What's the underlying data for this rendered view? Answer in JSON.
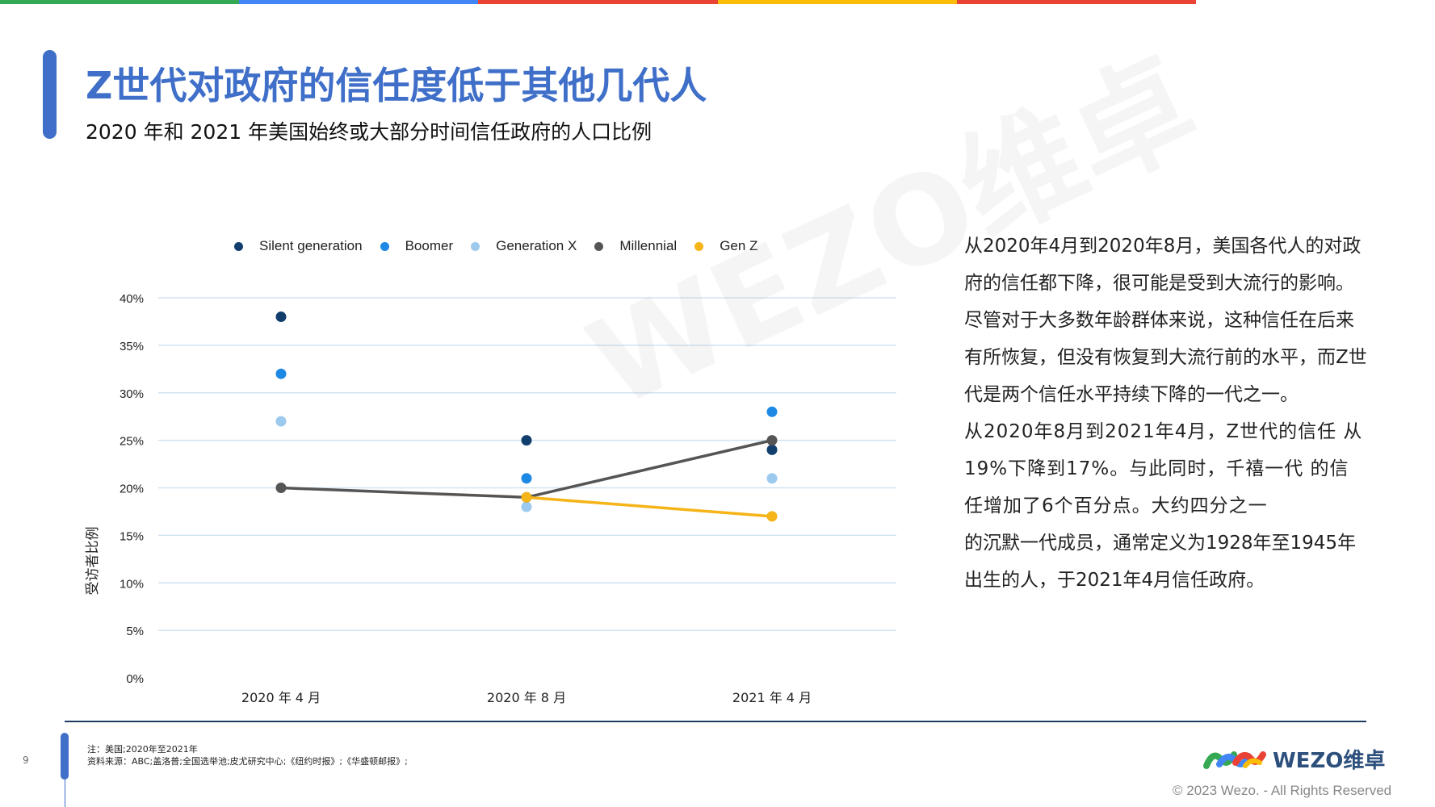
{
  "header": {
    "title": "Z世代对政府的信任度低于其他几代人",
    "subtitle": "2020 年和 2021 年美国始终或大部分时间信任政府的人口比例"
  },
  "colors": {
    "top_bar": [
      "#34a853",
      "#4285f4",
      "#ea4335",
      "#fbbc05",
      "#ea4335",
      "#ffffff"
    ],
    "accent": "#3f6fc8",
    "silent_generation": "#123e6e",
    "boomer": "#1e88e5",
    "generation_x": "#9cc9ee",
    "millennial": "#555555",
    "gen_z": "#f5b417"
  },
  "chart_data": {
    "type": "scatter",
    "title": "",
    "ylabel": "受访者比例",
    "xlabel": "",
    "categories": [
      "2020 年 4 月",
      "2020 年 8 月",
      "2021 年 4 月"
    ],
    "yticks": [
      "0%",
      "5%",
      "10%",
      "15%",
      "20%",
      "25%",
      "30%",
      "35%",
      "40%"
    ],
    "ylim": [
      0,
      40
    ],
    "grid": true,
    "legend_position": "top",
    "series": [
      {
        "name": "Silent generation",
        "values": [
          38,
          25,
          24
        ],
        "style": "markers"
      },
      {
        "name": "Boomer",
        "values": [
          32,
          21,
          28
        ],
        "style": "markers"
      },
      {
        "name": "Generation X",
        "values": [
          27,
          18,
          21
        ],
        "style": "markers"
      },
      {
        "name": "Millennial",
        "values": [
          20,
          19,
          25
        ],
        "style": "line+markers"
      },
      {
        "name": "Gen Z",
        "values": [
          null,
          19,
          17
        ],
        "style": "line+markers"
      }
    ]
  },
  "watermark": "WEZO维卓",
  "body": {
    "paragraph1": "从2020年4月到2020年8月，美国各代人的对政府的信任都下降，很可能是受到大流行的影响。尽管对于大多数年龄群体来说，这种信任在后来有所恢复，但没有恢复到大流行前的水平，而Z世代是两个信任水平持续下降的一代之一。",
    "paragraph2": "从2020年8月到2021年4月，Z世代的信任 从19%下降到17%。与此同时，千禧一代 的信任增加了6个百分点。大约四分之一",
    "paragraph3": "的沉默一代成员，通常定义为1928年至1945年出生的人，于2021年4月信任政府。"
  },
  "footer": {
    "page_number": "9",
    "note": "注：美国;2020年至2021年",
    "source": "资料来源：ABC;盖洛普;全国选举池;皮尤研究中心;《纽约时报》;《华盛顿邮报》;",
    "logo_text": "WEZO维卓",
    "copyright": "© 2023 Wezo. - All Rights Reserved"
  }
}
